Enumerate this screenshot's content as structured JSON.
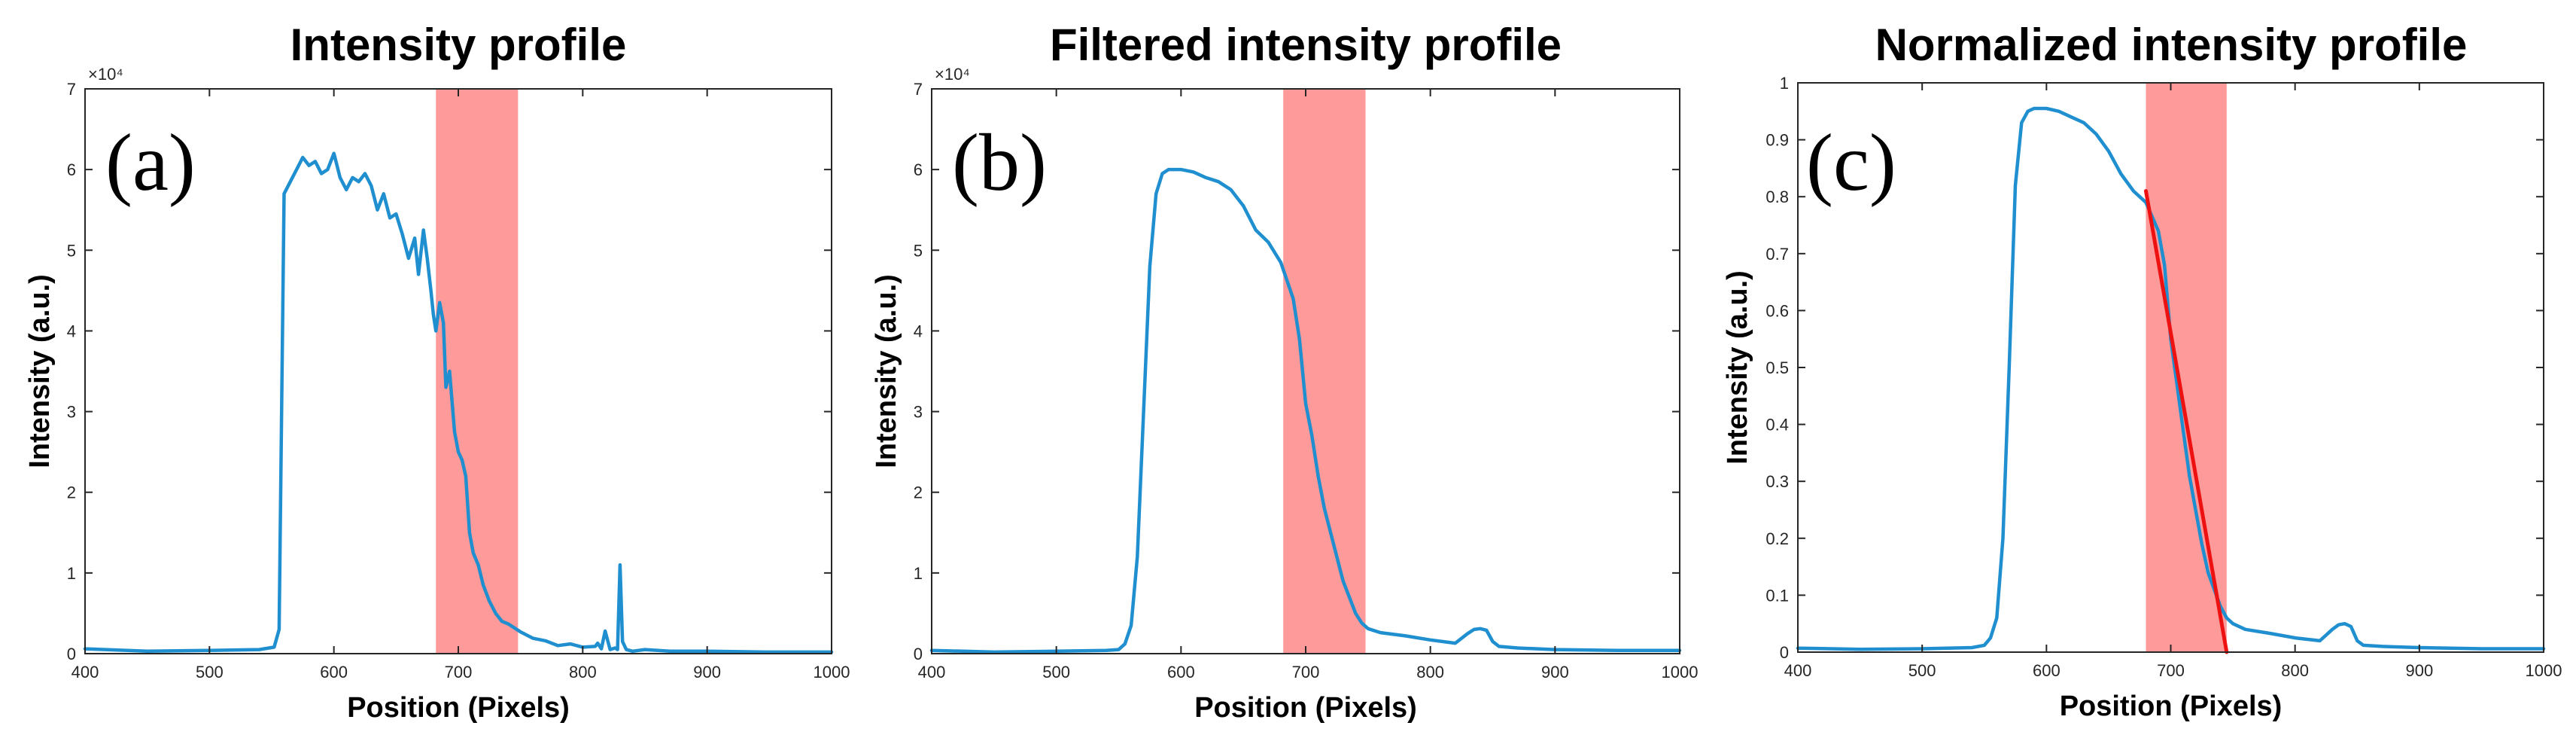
{
  "chart_data": [
    {
      "type": "line",
      "title": "Intensity profile",
      "panel_label": "(a)",
      "xlabel": "Position (Pixels)",
      "ylabel": "Intensity (a.u.)",
      "xlim": [
        400,
        1000
      ],
      "ylim": [
        0,
        70000
      ],
      "xticks": [
        400,
        500,
        600,
        700,
        800,
        900,
        1000
      ],
      "yticks": [
        0,
        1,
        2,
        3,
        4,
        5,
        6,
        7
      ],
      "y_multiplier": "×10⁴",
      "highlight_region": [
        682,
        748
      ],
      "series": [
        {
          "name": "Intensity",
          "color": "#1f8fcf",
          "x": [
            400,
            450,
            500,
            540,
            552,
            556,
            560,
            565,
            570,
            575,
            580,
            585,
            590,
            595,
            600,
            605,
            610,
            615,
            620,
            625,
            630,
            635,
            640,
            645,
            650,
            655,
            660,
            665,
            668,
            672,
            675,
            678,
            680,
            682,
            685,
            688,
            690,
            693,
            697,
            700,
            703,
            706,
            709,
            712,
            716,
            720,
            725,
            730,
            735,
            740,
            745,
            750,
            760,
            770,
            780,
            790,
            800,
            810,
            812,
            815,
            818,
            822,
            826,
            828,
            830,
            832,
            835,
            840,
            850,
            870,
            900,
            950,
            1000
          ],
          "y": [
            600,
            300,
            400,
            500,
            800,
            3000,
            57000,
            58500,
            60000,
            61500,
            60500,
            61000,
            59500,
            60000,
            62000,
            59000,
            57500,
            59000,
            58500,
            59500,
            58000,
            55000,
            57000,
            54000,
            54500,
            52000,
            49000,
            51500,
            47000,
            52500,
            49000,
            45000,
            42000,
            40000,
            43500,
            41000,
            33000,
            35000,
            27500,
            25000,
            24000,
            22000,
            15000,
            12500,
            11000,
            8500,
            6500,
            5000,
            4000,
            3700,
            3200,
            2700,
            1900,
            1600,
            1000,
            1200,
            800,
            900,
            1300,
            600,
            2800,
            500,
            700,
            500,
            11000,
            1500,
            500,
            300,
            500,
            300,
            300,
            200,
            200
          ]
        }
      ]
    },
    {
      "type": "line",
      "title": "Filtered intensity profile",
      "panel_label": "(b)",
      "xlabel": "Position (Pixels)",
      "ylabel": "Intensity (a.u.)",
      "xlim": [
        400,
        1000
      ],
      "ylim": [
        0,
        70000
      ],
      "xticks": [
        400,
        500,
        600,
        700,
        800,
        900,
        1000
      ],
      "yticks": [
        0,
        1,
        2,
        3,
        4,
        5,
        6,
        7
      ],
      "y_multiplier": "×10⁴",
      "highlight_region": [
        682,
        748
      ],
      "series": [
        {
          "name": "Filtered intensity",
          "color": "#1f8fcf",
          "x": [
            400,
            450,
            500,
            540,
            550,
            555,
            560,
            565,
            570,
            575,
            580,
            585,
            590,
            600,
            610,
            620,
            630,
            640,
            650,
            660,
            670,
            680,
            690,
            695,
            700,
            705,
            710,
            715,
            720,
            725,
            730,
            735,
            740,
            745,
            750,
            760,
            780,
            800,
            820,
            830,
            835,
            840,
            845,
            850,
            855,
            870,
            900,
            950,
            1000
          ],
          "y": [
            400,
            200,
            300,
            400,
            500,
            1200,
            3500,
            12000,
            30000,
            48000,
            57000,
            59500,
            60000,
            60000,
            59700,
            59000,
            58500,
            57500,
            55500,
            52500,
            51000,
            48500,
            44000,
            39000,
            31000,
            27000,
            22000,
            18000,
            15000,
            12000,
            9000,
            7000,
            5000,
            3800,
            3100,
            2600,
            2200,
            1700,
            1300,
            2500,
            3000,
            3100,
            2900,
            1500,
            900,
            700,
            500,
            400,
            400
          ]
        }
      ]
    },
    {
      "type": "line",
      "title": "Normalized intensity profile",
      "panel_label": "(c)",
      "xlabel": "Position (Pixels)",
      "ylabel": "Intensity (a.u.)",
      "xlim": [
        400,
        1000
      ],
      "ylim": [
        0,
        1
      ],
      "xticks": [
        400,
        500,
        600,
        700,
        800,
        900,
        1000
      ],
      "yticks": [
        0,
        0.1,
        0.2,
        0.3,
        0.4,
        0.5,
        0.6,
        0.7,
        0.8,
        0.9,
        1
      ],
      "highlight_region": [
        680,
        745
      ],
      "series": [
        {
          "name": "Normalized intensity",
          "color": "#1f8fcf",
          "x": [
            400,
            450,
            500,
            540,
            550,
            555,
            560,
            565,
            570,
            575,
            580,
            585,
            590,
            600,
            610,
            620,
            630,
            640,
            650,
            660,
            670,
            680,
            690,
            695,
            700,
            705,
            710,
            715,
            720,
            725,
            730,
            735,
            740,
            745,
            750,
            760,
            780,
            800,
            820,
            830,
            835,
            840,
            845,
            850,
            855,
            870,
            900,
            950,
            1000
          ],
          "y": [
            0.007,
            0.005,
            0.006,
            0.008,
            0.012,
            0.025,
            0.06,
            0.2,
            0.5,
            0.82,
            0.93,
            0.95,
            0.955,
            0.955,
            0.95,
            0.94,
            0.93,
            0.91,
            0.88,
            0.84,
            0.81,
            0.79,
            0.74,
            0.68,
            0.55,
            0.47,
            0.39,
            0.31,
            0.25,
            0.19,
            0.14,
            0.11,
            0.08,
            0.06,
            0.05,
            0.04,
            0.033,
            0.025,
            0.02,
            0.04,
            0.048,
            0.05,
            0.045,
            0.02,
            0.012,
            0.01,
            0.008,
            0.006,
            0.006
          ]
        },
        {
          "name": "Linear fit",
          "color": "#ee1111",
          "x": [
            680,
            745
          ],
          "y": [
            0.81,
            0.0
          ]
        }
      ]
    }
  ]
}
